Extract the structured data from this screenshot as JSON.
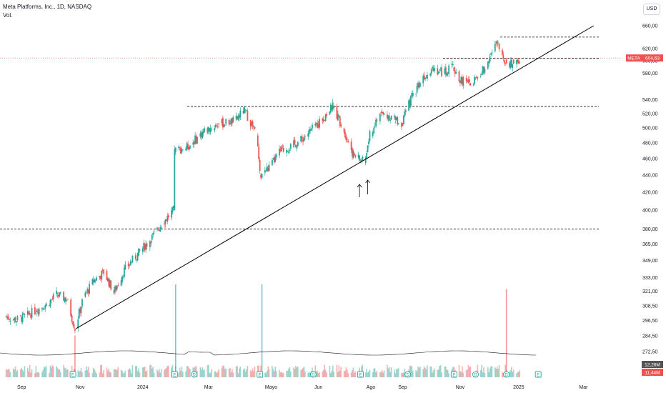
{
  "header": {
    "title": "Meta Platforms, Inc., 1D, NASDAQ",
    "subtitle": "Vol."
  },
  "currency": "USD",
  "price_tag": {
    "symbol": "META",
    "value": "604,63"
  },
  "volume_tags": {
    "avg": "12,26M",
    "current": "11,44M"
  },
  "colors": {
    "up": "#26a69a",
    "down": "#ef5350",
    "line": "#000000",
    "grid": "#e0e3eb"
  },
  "chart_data": {
    "type": "candlestick",
    "x_ticks": [
      "Sep",
      "Nov",
      "2024",
      "Mar",
      "Mayo",
      "Jun",
      "Ago",
      "Sep",
      "Nov",
      "2025",
      "Mar"
    ],
    "y_ticks": [
      660,
      620,
      600,
      580,
      540,
      520,
      500,
      480,
      460,
      440,
      420,
      400,
      380,
      365,
      349,
      333,
      321,
      "308,50",
      "296,50",
      "284,50",
      "272,50"
    ],
    "y_tick_labels": [
      "660,00",
      "620,00",
      "600,00",
      "580,00",
      "540,00",
      "520,00",
      "500,00",
      "480,00",
      "460,00",
      "440,00",
      "420,00",
      "400,00",
      "380,00",
      "365,00",
      "349,00",
      "333,00",
      "321,00",
      "308,50",
      "296,50",
      "284,50",
      "272,50"
    ],
    "y_scale": "log",
    "last_price": 604.63,
    "series": [
      {
        "name": "META",
        "points": [
          {
            "date": "2023-08-20",
            "close": 300
          },
          {
            "date": "2023-09-01",
            "close": 297
          },
          {
            "date": "2023-09-10",
            "close": 300
          },
          {
            "date": "2023-09-20",
            "close": 305
          },
          {
            "date": "2023-10-01",
            "close": 310
          },
          {
            "date": "2023-10-10",
            "close": 318
          },
          {
            "date": "2023-10-20",
            "close": 314
          },
          {
            "date": "2023-10-28",
            "close": 290
          },
          {
            "date": "2023-11-05",
            "close": 315
          },
          {
            "date": "2023-11-15",
            "close": 330
          },
          {
            "date": "2023-11-25",
            "close": 338
          },
          {
            "date": "2023-12-05",
            "close": 320
          },
          {
            "date": "2023-12-15",
            "close": 340
          },
          {
            "date": "2023-12-28",
            "close": 355
          },
          {
            "date": "2024-01-10",
            "close": 370
          },
          {
            "date": "2024-01-20",
            "close": 385
          },
          {
            "date": "2024-02-01",
            "close": 400
          },
          {
            "date": "2024-02-02",
            "close": 470
          },
          {
            "date": "2024-02-15",
            "close": 475
          },
          {
            "date": "2024-03-01",
            "close": 495
          },
          {
            "date": "2024-03-15",
            "close": 505
          },
          {
            "date": "2024-04-01",
            "close": 510
          },
          {
            "date": "2024-04-10",
            "close": 525
          },
          {
            "date": "2024-04-22",
            "close": 490
          },
          {
            "date": "2024-04-25",
            "close": 440
          },
          {
            "date": "2024-05-05",
            "close": 450
          },
          {
            "date": "2024-05-15",
            "close": 470
          },
          {
            "date": "2024-05-25",
            "close": 475
          },
          {
            "date": "2024-06-05",
            "close": 485
          },
          {
            "date": "2024-06-20",
            "close": 505
          },
          {
            "date": "2024-07-05",
            "close": 530
          },
          {
            "date": "2024-07-15",
            "close": 500
          },
          {
            "date": "2024-07-25",
            "close": 465
          },
          {
            "date": "2024-08-05",
            "close": 455
          },
          {
            "date": "2024-08-10",
            "close": 490
          },
          {
            "date": "2024-08-20",
            "close": 520
          },
          {
            "date": "2024-09-01",
            "close": 515
          },
          {
            "date": "2024-09-10",
            "close": 505
          },
          {
            "date": "2024-09-20",
            "close": 545
          },
          {
            "date": "2024-10-01",
            "close": 575
          },
          {
            "date": "2024-10-10",
            "close": 590
          },
          {
            "date": "2024-10-20",
            "close": 580
          },
          {
            "date": "2024-10-30",
            "close": 590
          },
          {
            "date": "2024-11-05",
            "close": 570
          },
          {
            "date": "2024-11-15",
            "close": 565
          },
          {
            "date": "2024-11-25",
            "close": 575
          },
          {
            "date": "2024-12-05",
            "close": 610
          },
          {
            "date": "2024-12-12",
            "close": 630
          },
          {
            "date": "2024-12-20",
            "close": 600
          },
          {
            "date": "2024-12-28",
            "close": 595
          },
          {
            "date": "2025-01-03",
            "close": 604.63
          }
        ]
      }
    ]
  }
}
